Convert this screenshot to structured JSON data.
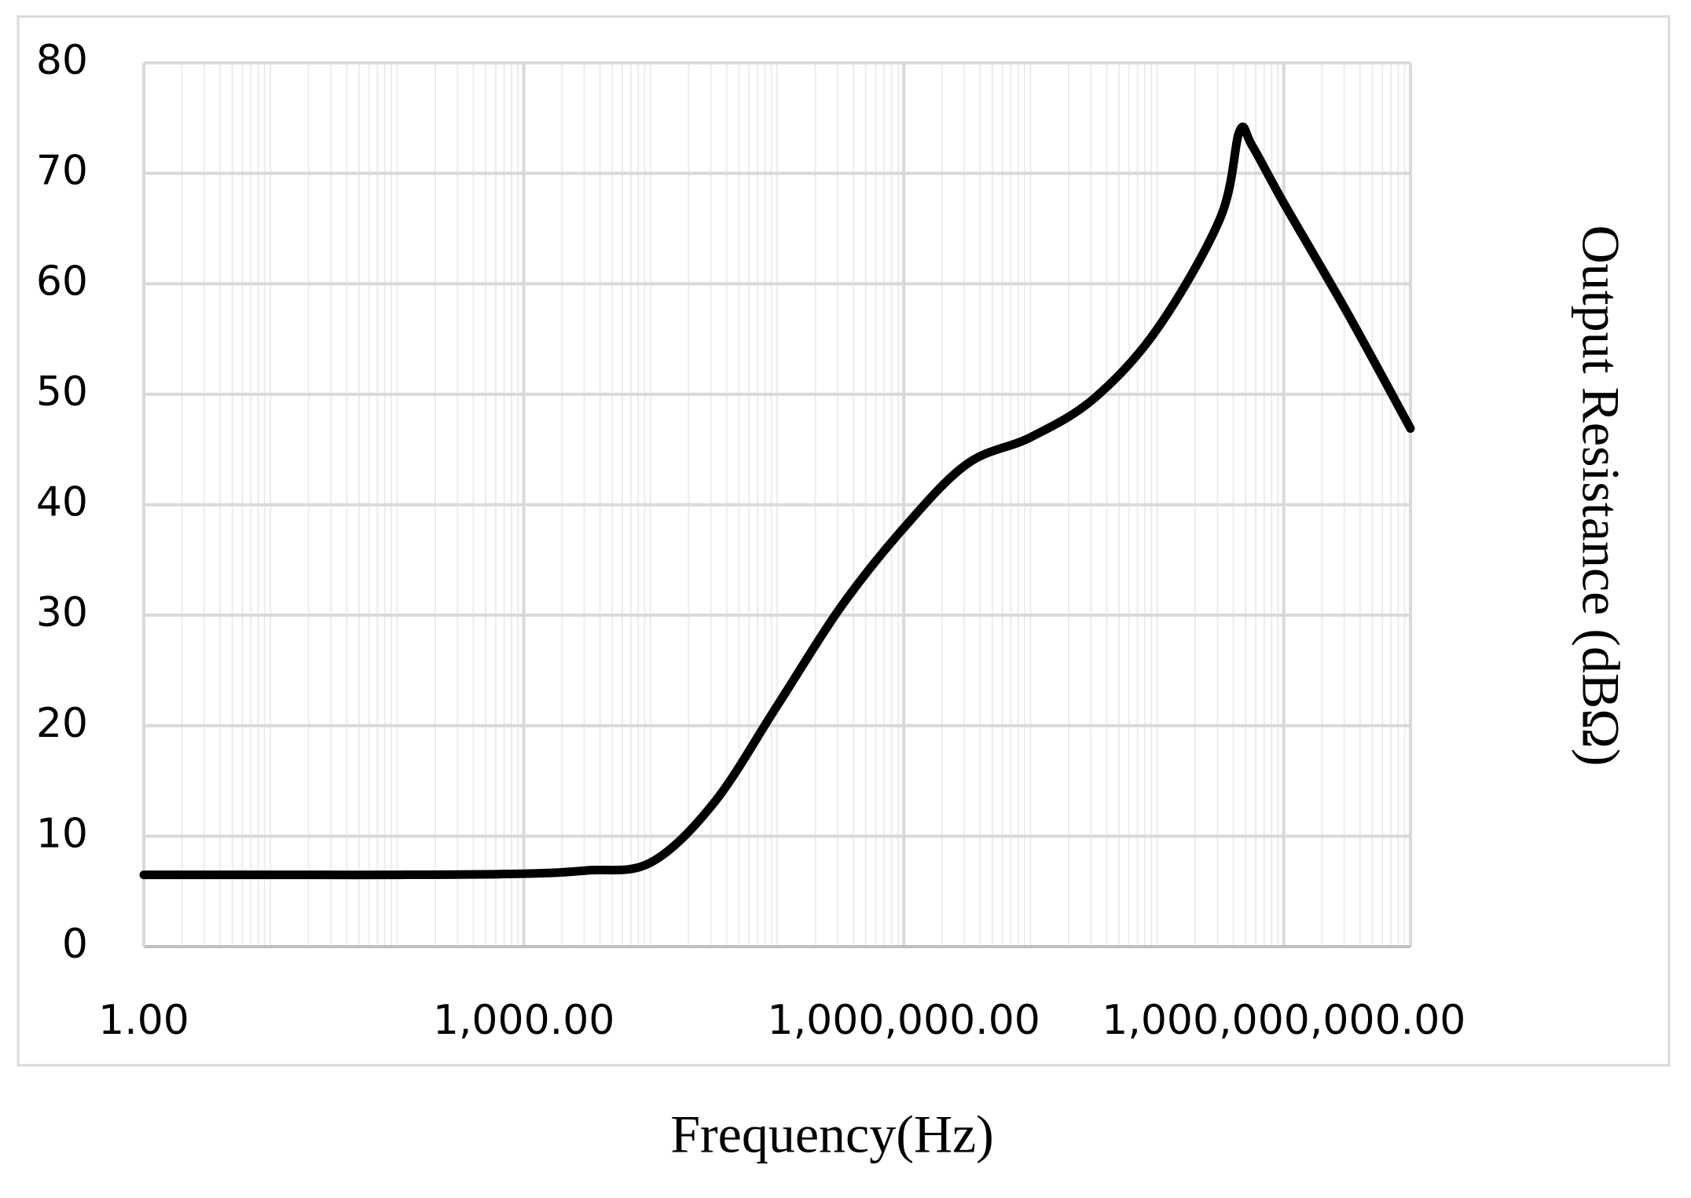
{
  "chart_data": {
    "type": "line",
    "x_label": "Frequency(Hz)",
    "y_label": "Output Resistance (dBΩ)",
    "xscale": "log",
    "grid": true,
    "x": [
      1,
      10,
      100,
      1000,
      3162,
      10000,
      31623,
      100000,
      316228,
      1000000,
      3162278,
      10000000,
      31622777,
      100000000,
      316227766,
      446683592,
      562341325,
      1000000000,
      3162277660,
      10000000000
    ],
    "series": [
      {
        "name": "Output Resistance",
        "color": "#000000",
        "values": [
          6.5,
          6.5,
          6.5,
          6.6,
          6.9,
          7.6,
          13,
          21.8,
          30.7,
          37.9,
          43.7,
          46.1,
          49.6,
          55.9,
          66,
          73.8,
          72.5,
          67.3,
          57.4,
          46.9
        ]
      }
    ],
    "xlim": [
      1,
      10000000000
    ],
    "xticks": [
      {
        "value": 1,
        "label": "1.00"
      },
      {
        "value": 1000,
        "label": "1,000.00"
      },
      {
        "value": 1000000,
        "label": "1,000,000.00"
      },
      {
        "value": 1000000000,
        "label": "1,000,000,000.00"
      }
    ],
    "ylim": [
      0,
      80
    ],
    "yticks": [
      0,
      10,
      20,
      30,
      40,
      50,
      60,
      70,
      80
    ]
  }
}
